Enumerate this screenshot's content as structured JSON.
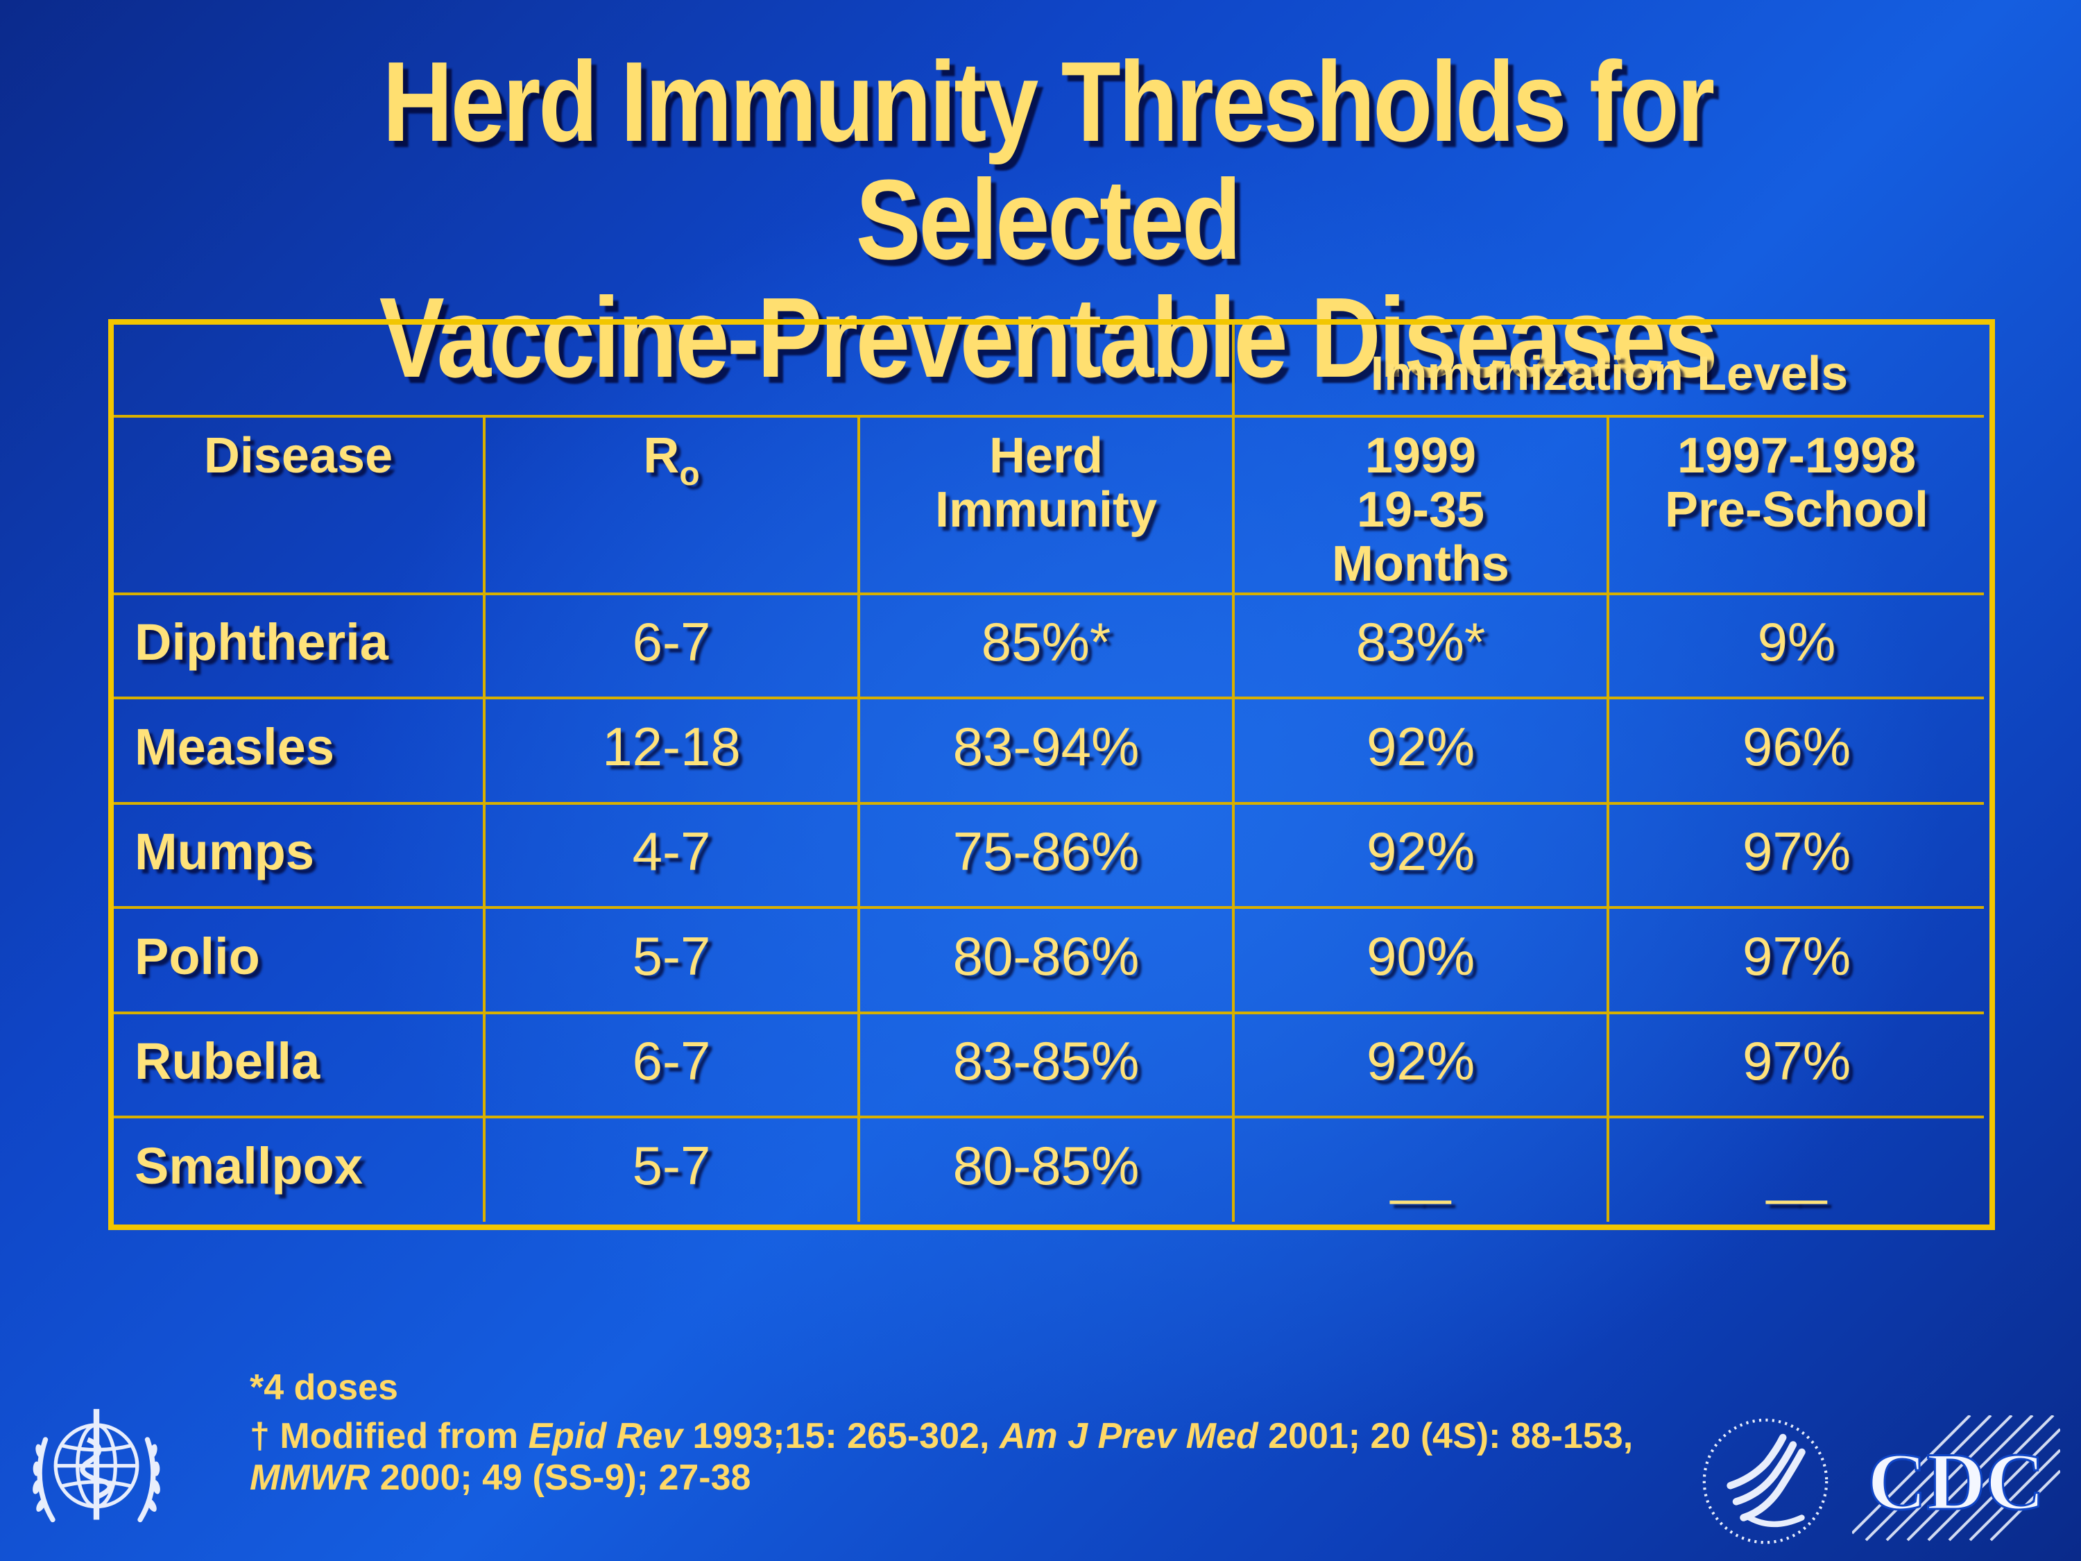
{
  "slide": {
    "title_line1": "Herd Immunity Thresholds for Selected",
    "title_line2": "Vaccine-Preventable Diseases"
  },
  "table": {
    "group_header": "Immunization Levels",
    "headers": {
      "disease": "Disease",
      "r": "R",
      "r_sub": "o",
      "herd_line1": "Herd",
      "herd_line2": "Immunity",
      "col1999_line1": "1999",
      "col1999_line2": "19-35",
      "col1999_line3": "Months",
      "colpre_line1": "1997-1998",
      "colpre_line2": "Pre-School"
    },
    "rows": [
      {
        "disease": "Diphtheria",
        "r0": "6-7",
        "herd": "85%*",
        "y1999": "83%*",
        "preschool": "9%"
      },
      {
        "disease": "Measles",
        "r0": "12-18",
        "herd": "83-94%",
        "y1999": "92%",
        "preschool": "96%"
      },
      {
        "disease": "Mumps",
        "r0": "4-7",
        "herd": "75-86%",
        "y1999": "92%",
        "preschool": "97%"
      },
      {
        "disease": "Polio",
        "r0": "5-7",
        "herd": "80-86%",
        "y1999": "90%",
        "preschool": "97%"
      },
      {
        "disease": "Rubella",
        "r0": "6-7",
        "herd": "83-85%",
        "y1999": "92%",
        "preschool": "97%"
      },
      {
        "disease": "Smallpox",
        "r0": "5-7",
        "herd": "80-85%",
        "y1999": "__",
        "preschool": "__"
      }
    ]
  },
  "footnotes": {
    "note1": "*4 doses",
    "note2_a": "† Modified from ",
    "note2_b": "Epid Rev",
    "note2_c": " 1993;15: 265-302, ",
    "note2_d": "Am J Prev Med",
    "note2_e": " 2001; 20 (4S): 88-153, ",
    "note2_f": "MMWR",
    "note2_g": " 2000; 49 (SS-9); 27-38"
  },
  "logos": {
    "who": "who-emblem-icon",
    "hhs": "hhs-eagle-icon",
    "cdc_text": "CDC"
  },
  "colors": {
    "text_gold": "#ffd966",
    "table_border": "#f2c600",
    "background": "#155ee0"
  }
}
